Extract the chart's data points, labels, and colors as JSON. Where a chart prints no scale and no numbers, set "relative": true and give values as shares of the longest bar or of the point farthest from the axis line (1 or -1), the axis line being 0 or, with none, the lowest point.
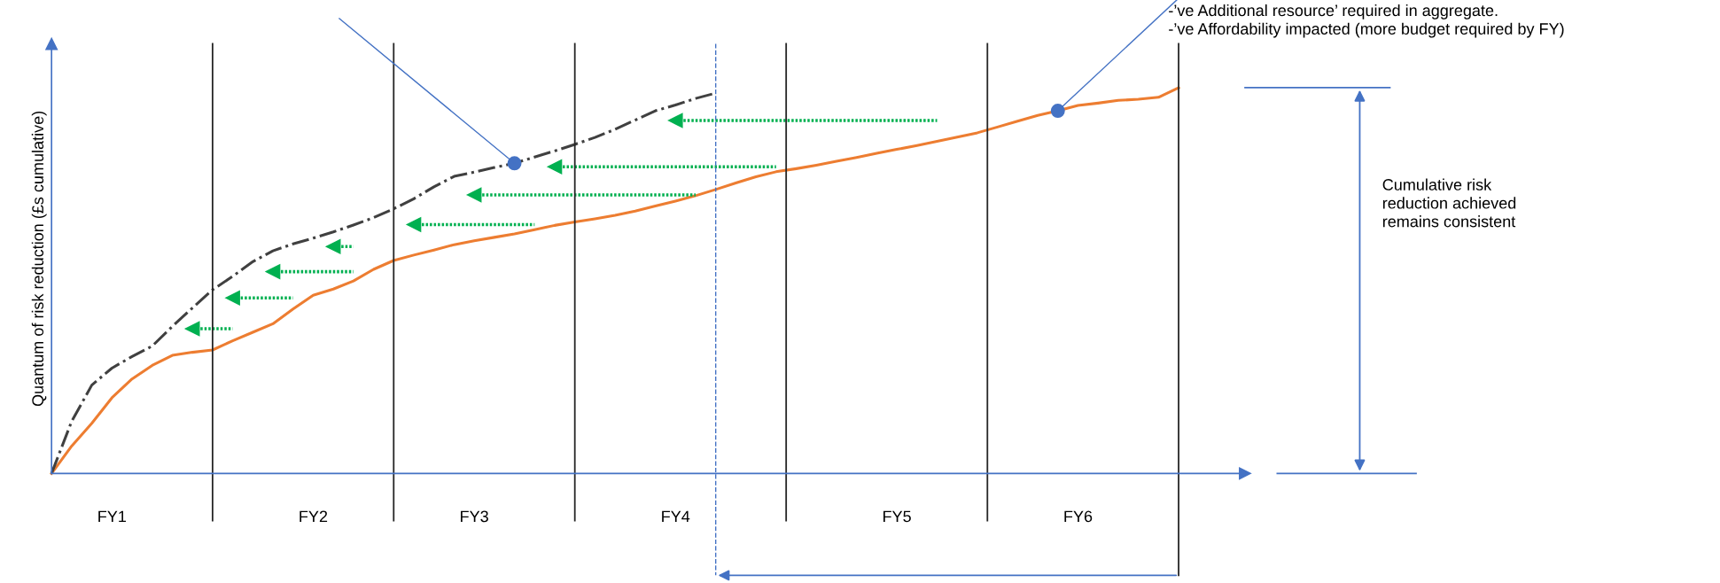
{
  "chart_data": {
    "type": "line",
    "relative": true,
    "ylabel": "Quantum of risk reduction (£s cumulative)",
    "categories": [
      null,
      null,
      null,
      "FY1",
      null,
      null,
      null,
      null,
      null,
      null,
      null,
      null,
      null,
      "FY2",
      null,
      null,
      null,
      null,
      null,
      null,
      null,
      "FY3",
      null,
      null,
      null,
      null,
      null,
      null,
      null,
      null,
      null,
      "FY4",
      null,
      null,
      null,
      null,
      null,
      null,
      null,
      null,
      null,
      null,
      "FY5",
      null,
      null,
      null,
      null,
      null,
      null,
      null,
      null,
      "FY6",
      null,
      null,
      null,
      null,
      null
    ],
    "series": [
      {
        "color": "#ed7d31",
        "line_style": "solid",
        "values": [
          0,
          0.071,
          0.13,
          0.196,
          0.245,
          0.28,
          0.306,
          0.314,
          0.32,
          0.344,
          0.366,
          0.388,
          0.426,
          0.462,
          0.478,
          0.499,
          0.529,
          0.552,
          0.566,
          0.579,
          0.593,
          0.603,
          0.612,
          0.621,
          0.632,
          0.643,
          0.652,
          0.66,
          0.669,
          0.68,
          0.693,
          0.706,
          0.72,
          0.736,
          0.753,
          0.769,
          0.782,
          0.79,
          0.799,
          0.809,
          0.819,
          0.83,
          0.84,
          0.85,
          0.861,
          0.872,
          0.883,
          0.898,
          0.913,
          0.928,
          0.94,
          0.954,
          0.96,
          0.967,
          0.97,
          0.975,
          1
        ]
      },
      {
        "color": "#404040",
        "line_style": "dashdot",
        "values": [
          0,
          0.135,
          0.229,
          0.273,
          0.303,
          0.33,
          0.381,
          0.429,
          0.476,
          0.511,
          0.549,
          0.577,
          0.595,
          0.61,
          0.626,
          0.644,
          0.663,
          0.686,
          0.712,
          0.743,
          0.77,
          0.781,
          0.793,
          0.804,
          0.82,
          0.836,
          0.853,
          0.871,
          0.892,
          0.916,
          0.94,
          0.955,
          0.972,
          0.986,
          null,
          null,
          null,
          null,
          null,
          null,
          null,
          null,
          null,
          null,
          null,
          null,
          null,
          null,
          null,
          null,
          null,
          null,
          null,
          null,
          null,
          null,
          null
        ]
      },
      {
        "type": "scatter",
        "color": "#4472c4",
        "marker": "circle",
        "values": [
          null,
          null,
          null,
          null,
          null,
          null,
          null,
          null,
          null,
          null,
          null,
          null,
          null,
          null,
          null,
          null,
          null,
          null,
          null,
          null,
          null,
          null,
          null,
          0.804,
          null,
          null,
          null,
          null,
          null,
          null,
          null,
          null,
          null,
          null,
          null,
          null,
          null,
          null,
          null,
          null,
          null,
          null,
          null,
          null,
          null,
          null,
          null,
          null,
          null,
          null,
          0.94,
          null,
          null,
          null,
          null,
          null,
          null
        ]
      },
      {
        "color": "#00b050",
        "line_style": "dotted",
        "values": [
          null,
          null,
          null,
          null,
          null,
          null,
          null,
          null,
          null,
          null,
          null,
          null,
          null,
          null,
          null,
          null,
          null,
          null,
          null,
          null,
          null,
          null,
          null,
          null,
          null,
          null,
          null,
          null,
          null,
          null,
          null,
          0.915,
          0.915,
          0.915,
          0.915,
          0.915,
          0.915,
          0.915,
          0.915,
          0.915,
          0.915,
          0.915,
          0.915,
          0.915,
          0.915,
          null,
          null,
          null,
          null,
          null,
          null,
          null,
          null,
          null,
          null,
          null,
          null
        ]
      },
      {
        "color": "#00b050",
        "line_style": "dotted",
        "values": [
          null,
          null,
          null,
          null,
          null,
          null,
          null,
          null,
          null,
          null,
          null,
          null,
          null,
          null,
          null,
          null,
          null,
          null,
          null,
          null,
          null,
          null,
          null,
          null,
          null,
          0.795,
          0.795,
          0.795,
          0.795,
          0.795,
          0.795,
          0.795,
          0.795,
          0.795,
          0.795,
          0.795,
          0.795,
          null,
          null,
          null,
          null,
          null,
          null,
          null,
          null,
          null,
          null,
          null,
          null,
          null,
          null,
          null,
          null,
          null,
          null,
          null,
          null
        ]
      },
      {
        "color": "#00b050",
        "line_style": "dotted",
        "values": [
          null,
          null,
          null,
          null,
          null,
          null,
          null,
          null,
          null,
          null,
          null,
          null,
          null,
          null,
          null,
          null,
          null,
          null,
          null,
          null,
          null,
          0.722,
          0.722,
          0.722,
          0.722,
          0.722,
          0.722,
          0.722,
          0.722,
          0.722,
          0.722,
          0.722,
          0.722,
          null,
          null,
          null,
          null,
          null,
          null,
          null,
          null,
          null,
          null,
          null,
          null,
          null,
          null,
          null,
          null,
          null,
          null,
          null,
          null,
          null,
          null,
          null,
          null
        ]
      },
      {
        "color": "#00b050",
        "line_style": "dotted",
        "values": [
          null,
          null,
          null,
          null,
          null,
          null,
          null,
          null,
          null,
          null,
          null,
          null,
          null,
          null,
          null,
          null,
          null,
          null,
          0.645,
          0.645,
          0.645,
          0.645,
          0.645,
          0.645,
          0.645,
          null,
          null,
          null,
          null,
          null,
          null,
          null,
          null,
          null,
          null,
          null,
          null,
          null,
          null,
          null,
          null,
          null,
          null,
          null,
          null,
          null,
          null,
          null,
          null,
          null,
          null,
          null,
          null,
          null,
          null,
          null,
          null
        ]
      },
      {
        "color": "#00b050",
        "line_style": "dotted",
        "values": [
          null,
          null,
          null,
          null,
          null,
          null,
          null,
          null,
          null,
          null,
          null,
          null,
          null,
          null,
          0.588,
          0.588,
          null,
          null,
          null,
          null,
          null,
          null,
          null,
          null,
          null,
          null,
          null,
          null,
          null,
          null,
          null,
          null,
          null,
          null,
          null,
          null,
          null,
          null,
          null,
          null,
          null,
          null,
          null,
          null,
          null,
          null,
          null,
          null,
          null,
          null,
          null,
          null,
          null,
          null,
          null,
          null,
          null
        ]
      },
      {
        "color": "#00b050",
        "line_style": "dotted",
        "values": [
          null,
          null,
          null,
          null,
          null,
          null,
          null,
          null,
          null,
          null,
          null,
          0.523,
          0.523,
          0.523,
          0.523,
          0.523,
          null,
          null,
          null,
          null,
          null,
          null,
          null,
          null,
          null,
          null,
          null,
          null,
          null,
          null,
          null,
          null,
          null,
          null,
          null,
          null,
          null,
          null,
          null,
          null,
          null,
          null,
          null,
          null,
          null,
          null,
          null,
          null,
          null,
          null,
          null,
          null,
          null,
          null,
          null,
          null,
          null
        ]
      },
      {
        "color": "#00b050",
        "line_style": "dotted",
        "values": [
          null,
          null,
          null,
          null,
          null,
          null,
          null,
          null,
          null,
          0.455,
          0.455,
          0.455,
          0.455,
          null,
          null,
          null,
          null,
          null,
          null,
          null,
          null,
          null,
          null,
          null,
          null,
          null,
          null,
          null,
          null,
          null,
          null,
          null,
          null,
          null,
          null,
          null,
          null,
          null,
          null,
          null,
          null,
          null,
          null,
          null,
          null,
          null,
          null,
          null,
          null,
          null,
          null,
          null,
          null,
          null,
          null,
          null,
          null
        ]
      },
      {
        "color": "#00b050",
        "line_style": "dotted",
        "values": [
          null,
          null,
          null,
          null,
          null,
          null,
          null,
          0.375,
          0.375,
          0.375,
          null,
          null,
          null,
          null,
          null,
          null,
          null,
          null,
          null,
          null,
          null,
          null,
          null,
          null,
          null,
          null,
          null,
          null,
          null,
          null,
          null,
          null,
          null,
          null,
          null,
          null,
          null,
          null,
          null,
          null,
          null,
          null,
          null,
          null,
          null,
          null,
          null,
          null,
          null,
          null,
          null,
          null,
          null,
          null,
          null,
          null,
          null
        ]
      }
    ],
    "annotations": [
      "-’ve Additional resource’ required in aggregate.\n-’ve Affordability impacted (more budget required by FY)",
      "Cumulative risk\nreduction achieved\nremains consistent"
    ],
    "grid": "x"
  }
}
